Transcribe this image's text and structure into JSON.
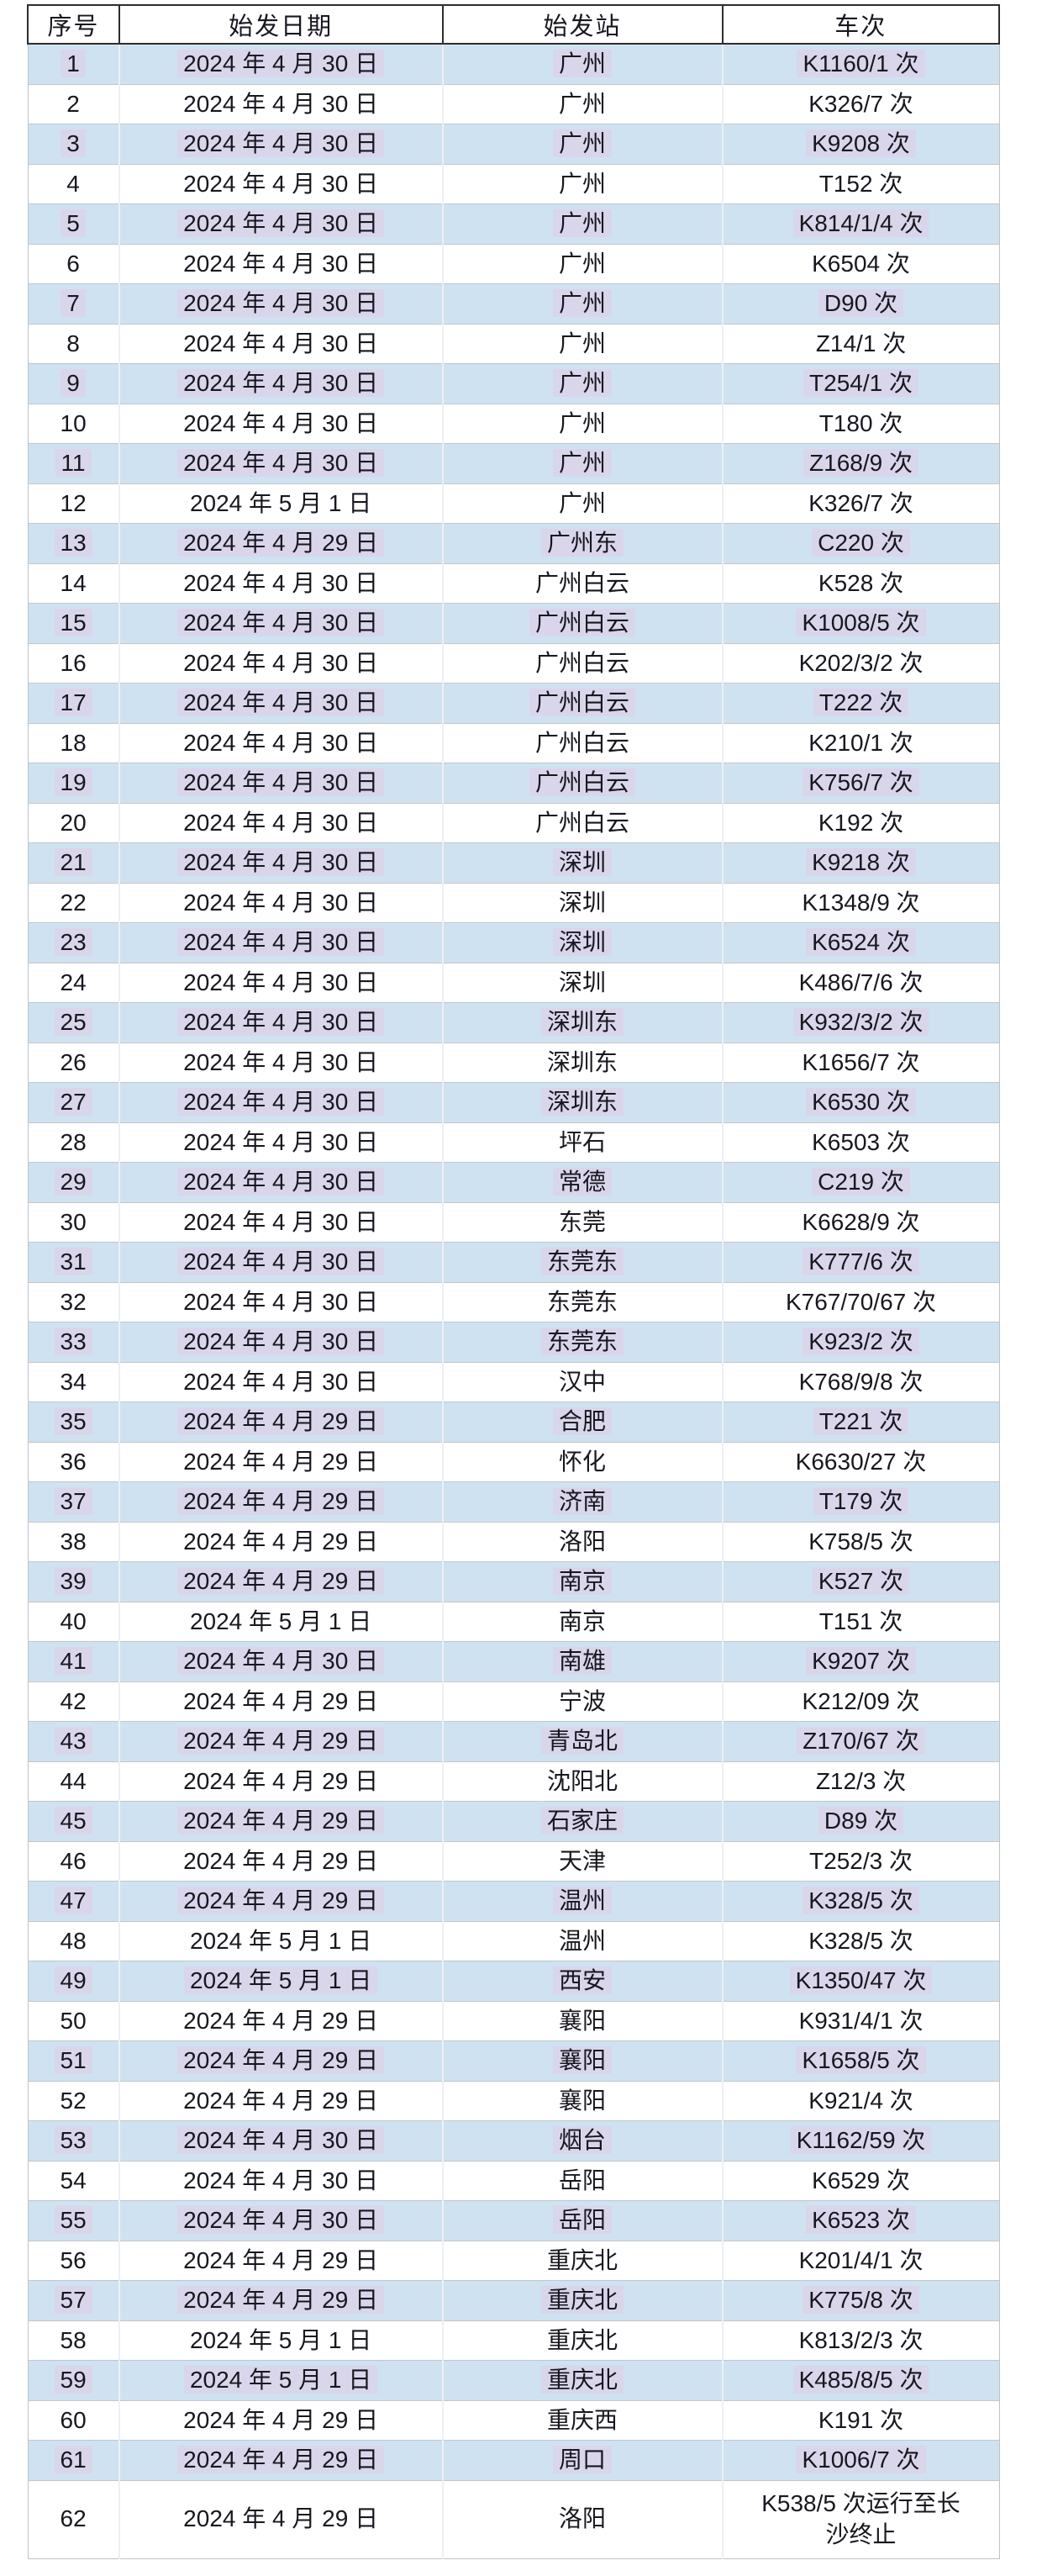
{
  "table": {
    "headers": [
      "序号",
      "始发日期",
      "始发站",
      "车次"
    ],
    "rows": [
      {
        "no": "1",
        "date": "2024 年 4 月 30 日",
        "station": "广州",
        "train": "K1160/1 次"
      },
      {
        "no": "2",
        "date": "2024 年 4 月 30 日",
        "station": "广州",
        "train": "K326/7 次"
      },
      {
        "no": "3",
        "date": "2024 年 4 月 30 日",
        "station": "广州",
        "train": "K9208 次"
      },
      {
        "no": "4",
        "date": "2024 年 4 月 30 日",
        "station": "广州",
        "train": "T152 次"
      },
      {
        "no": "5",
        "date": "2024 年 4 月 30 日",
        "station": "广州",
        "train": "K814/1/4 次"
      },
      {
        "no": "6",
        "date": "2024 年 4 月 30 日",
        "station": "广州",
        "train": "K6504 次"
      },
      {
        "no": "7",
        "date": "2024 年 4 月 30 日",
        "station": "广州",
        "train": "D90 次"
      },
      {
        "no": "8",
        "date": "2024 年 4 月 30 日",
        "station": "广州",
        "train": "Z14/1 次"
      },
      {
        "no": "9",
        "date": "2024 年 4 月 30 日",
        "station": "广州",
        "train": "T254/1 次"
      },
      {
        "no": "10",
        "date": "2024 年 4 月 30 日",
        "station": "广州",
        "train": "T180 次"
      },
      {
        "no": "11",
        "date": "2024 年 4 月 30 日",
        "station": "广州",
        "train": "Z168/9 次"
      },
      {
        "no": "12",
        "date": "2024 年 5 月 1 日",
        "station": "广州",
        "train": "K326/7 次"
      },
      {
        "no": "13",
        "date": "2024 年 4 月 29 日",
        "station": "广州东",
        "train": "C220 次"
      },
      {
        "no": "14",
        "date": "2024 年 4 月 30 日",
        "station": "广州白云",
        "train": "K528 次"
      },
      {
        "no": "15",
        "date": "2024 年 4 月 30 日",
        "station": "广州白云",
        "train": "K1008/5 次"
      },
      {
        "no": "16",
        "date": "2024 年 4 月 30 日",
        "station": "广州白云",
        "train": "K202/3/2 次"
      },
      {
        "no": "17",
        "date": "2024 年 4 月 30 日",
        "station": "广州白云",
        "train": "T222 次"
      },
      {
        "no": "18",
        "date": "2024 年 4 月 30 日",
        "station": "广州白云",
        "train": "K210/1 次"
      },
      {
        "no": "19",
        "date": "2024 年 4 月 30 日",
        "station": "广州白云",
        "train": "K756/7 次"
      },
      {
        "no": "20",
        "date": "2024 年 4 月 30 日",
        "station": "广州白云",
        "train": "K192 次"
      },
      {
        "no": "21",
        "date": "2024 年 4 月 30 日",
        "station": "深圳",
        "train": "K9218 次"
      },
      {
        "no": "22",
        "date": "2024 年 4 月 30 日",
        "station": "深圳",
        "train": "K1348/9 次"
      },
      {
        "no": "23",
        "date": "2024 年 4 月 30 日",
        "station": "深圳",
        "train": "K6524 次"
      },
      {
        "no": "24",
        "date": "2024 年 4 月 30 日",
        "station": "深圳",
        "train": "K486/7/6 次"
      },
      {
        "no": "25",
        "date": "2024 年 4 月 30 日",
        "station": "深圳东",
        "train": "K932/3/2 次"
      },
      {
        "no": "26",
        "date": "2024 年 4 月 30 日",
        "station": "深圳东",
        "train": "K1656/7 次"
      },
      {
        "no": "27",
        "date": "2024 年 4 月 30 日",
        "station": "深圳东",
        "train": "K6530 次"
      },
      {
        "no": "28",
        "date": "2024 年 4 月 30 日",
        "station": "坪石",
        "train": "K6503 次"
      },
      {
        "no": "29",
        "date": "2024 年 4 月 30 日",
        "station": "常德",
        "train": "C219 次"
      },
      {
        "no": "30",
        "date": "2024 年 4 月 30 日",
        "station": "东莞",
        "train": "K6628/9 次"
      },
      {
        "no": "31",
        "date": "2024 年 4 月 30 日",
        "station": "东莞东",
        "train": "K777/6 次"
      },
      {
        "no": "32",
        "date": "2024 年 4 月 30 日",
        "station": "东莞东",
        "train": "K767/70/67 次"
      },
      {
        "no": "33",
        "date": "2024 年 4 月 30 日",
        "station": "东莞东",
        "train": "K923/2 次"
      },
      {
        "no": "34",
        "date": "2024 年 4 月 30 日",
        "station": "汉中",
        "train": "K768/9/8 次"
      },
      {
        "no": "35",
        "date": "2024 年 4 月 29 日",
        "station": "合肥",
        "train": "T221 次"
      },
      {
        "no": "36",
        "date": "2024 年 4 月 29 日",
        "station": "怀化",
        "train": "K6630/27 次"
      },
      {
        "no": "37",
        "date": "2024 年 4 月 29 日",
        "station": "济南",
        "train": "T179 次"
      },
      {
        "no": "38",
        "date": "2024 年 4 月 29 日",
        "station": "洛阳",
        "train": "K758/5 次"
      },
      {
        "no": "39",
        "date": "2024 年 4 月 29 日",
        "station": "南京",
        "train": "K527 次"
      },
      {
        "no": "40",
        "date": "2024 年 5 月 1 日",
        "station": "南京",
        "train": "T151 次"
      },
      {
        "no": "41",
        "date": "2024 年 4 月 30 日",
        "station": "南雄",
        "train": "K9207 次"
      },
      {
        "no": "42",
        "date": "2024 年 4 月 29 日",
        "station": "宁波",
        "train": "K212/09 次"
      },
      {
        "no": "43",
        "date": "2024 年 4 月 29 日",
        "station": "青岛北",
        "train": "Z170/67 次"
      },
      {
        "no": "44",
        "date": "2024 年 4 月 29 日",
        "station": "沈阳北",
        "train": "Z12/3 次"
      },
      {
        "no": "45",
        "date": "2024 年 4 月 29 日",
        "station": "石家庄",
        "train": "D89 次"
      },
      {
        "no": "46",
        "date": "2024 年 4 月 29 日",
        "station": "天津",
        "train": "T252/3 次"
      },
      {
        "no": "47",
        "date": "2024 年 4 月 29 日",
        "station": "温州",
        "train": "K328/5 次"
      },
      {
        "no": "48",
        "date": "2024 年 5 月 1 日",
        "station": "温州",
        "train": "K328/5 次"
      },
      {
        "no": "49",
        "date": "2024 年 5 月 1 日",
        "station": "西安",
        "train": "K1350/47 次"
      },
      {
        "no": "50",
        "date": "2024 年 4 月 29 日",
        "station": "襄阳",
        "train": "K931/4/1 次"
      },
      {
        "no": "51",
        "date": "2024 年 4 月 29 日",
        "station": "襄阳",
        "train": "K1658/5 次"
      },
      {
        "no": "52",
        "date": "2024 年 4 月 29 日",
        "station": "襄阳",
        "train": "K921/4 次"
      },
      {
        "no": "53",
        "date": "2024 年 4 月 30 日",
        "station": "烟台",
        "train": "K1162/59 次"
      },
      {
        "no": "54",
        "date": "2024 年 4 月 30 日",
        "station": "岳阳",
        "train": "K6529 次"
      },
      {
        "no": "55",
        "date": "2024 年 4 月 30 日",
        "station": "岳阳",
        "train": "K6523 次"
      },
      {
        "no": "56",
        "date": "2024 年 4 月 29 日",
        "station": "重庆北",
        "train": "K201/4/1 次"
      },
      {
        "no": "57",
        "date": "2024 年 4 月 29 日",
        "station": "重庆北",
        "train": "K775/8 次"
      },
      {
        "no": "58",
        "date": "2024 年 5 月 1 日",
        "station": "重庆北",
        "train": "K813/2/3 次"
      },
      {
        "no": "59",
        "date": "2024 年 5 月 1 日",
        "station": "重庆北",
        "train": "K485/8/5 次"
      },
      {
        "no": "60",
        "date": "2024 年 4 月 29 日",
        "station": "重庆西",
        "train": "K191 次"
      },
      {
        "no": "61",
        "date": "2024 年 4 月 29 日",
        "station": "周口",
        "train": "K1006/7 次"
      },
      {
        "no": "62",
        "date": "2024 年 4 月 29 日",
        "station": "洛阳",
        "train": "K538/5 次运行至长沙终止"
      }
    ]
  },
  "colors": {
    "stripe_blue": "#cfe2f1",
    "text_highlight": "#d9d6ec",
    "header_border": "#2e2e2e",
    "row_border": "#c3c6ca",
    "text": "#17171f"
  }
}
